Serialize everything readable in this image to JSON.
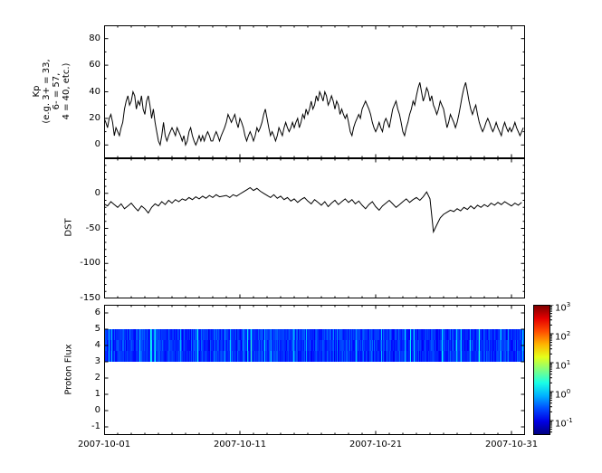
{
  "figure": {
    "background": "#ffffff",
    "line_color": "#000000",
    "x_axis": {
      "range_days": [
        0,
        31
      ],
      "major_tick_days": [
        0,
        10,
        20,
        30
      ],
      "tick_labels": [
        "2007-10-01",
        "2007-10-11",
        "2007-10-21",
        "2007-10-31"
      ],
      "minor_tick_step_days": 1
    }
  },
  "chart_data": [
    {
      "id": "kp",
      "type": "line",
      "ylabel_lines": [
        "Kp",
        "(e.g. 3+ = 33,",
        "6- = 57,",
        "4 = 40, etc.)"
      ],
      "ylim": [
        -10,
        90
      ],
      "yticks": [
        0,
        20,
        40,
        60,
        80
      ],
      "yminor_step": 10,
      "x_start_day": 0,
      "x_step_days": 0.125,
      "values": [
        20,
        17,
        13,
        20,
        23,
        17,
        7,
        13,
        10,
        7,
        13,
        17,
        27,
        33,
        37,
        30,
        33,
        40,
        37,
        27,
        33,
        30,
        37,
        27,
        23,
        33,
        37,
        30,
        20,
        27,
        17,
        10,
        3,
        0,
        7,
        17,
        7,
        3,
        7,
        10,
        13,
        10,
        7,
        13,
        10,
        7,
        3,
        7,
        0,
        3,
        10,
        13,
        7,
        3,
        0,
        3,
        7,
        3,
        7,
        3,
        7,
        10,
        7,
        3,
        3,
        7,
        10,
        7,
        3,
        7,
        10,
        13,
        17,
        23,
        20,
        17,
        20,
        23,
        17,
        13,
        20,
        17,
        13,
        7,
        3,
        7,
        10,
        7,
        3,
        7,
        13,
        10,
        13,
        17,
        23,
        27,
        20,
        13,
        7,
        10,
        7,
        3,
        7,
        13,
        10,
        7,
        13,
        17,
        13,
        10,
        13,
        17,
        13,
        17,
        20,
        13,
        17,
        23,
        20,
        27,
        23,
        27,
        33,
        27,
        30,
        37,
        33,
        40,
        37,
        33,
        40,
        37,
        30,
        33,
        37,
        33,
        27,
        33,
        30,
        23,
        27,
        23,
        20,
        23,
        17,
        10,
        7,
        13,
        17,
        20,
        23,
        20,
        27,
        30,
        33,
        30,
        27,
        23,
        17,
        13,
        10,
        13,
        17,
        13,
        10,
        17,
        20,
        17,
        13,
        20,
        27,
        30,
        33,
        27,
        23,
        17,
        10,
        7,
        13,
        17,
        23,
        27,
        33,
        30,
        37,
        43,
        47,
        40,
        33,
        37,
        43,
        40,
        33,
        37,
        30,
        27,
        23,
        27,
        33,
        30,
        27,
        20,
        13,
        17,
        23,
        20,
        17,
        13,
        17,
        23,
        30,
        37,
        43,
        47,
        40,
        33,
        27,
        23,
        27,
        30,
        23,
        17,
        13,
        10,
        13,
        17,
        20,
        17,
        13,
        10,
        13,
        17,
        13,
        10,
        7,
        13,
        17,
        13,
        10,
        13,
        10,
        13,
        17,
        13,
        10,
        7,
        10,
        13
      ]
    },
    {
      "id": "dst",
      "type": "line",
      "ylabel": "DST",
      "ylim": [
        -150,
        50
      ],
      "yticks": [
        0,
        -50,
        -100,
        -150
      ],
      "yminor_step": 10,
      "x_start_day": 0,
      "x_step_days": 0.25,
      "values": [
        -15,
        -18,
        -12,
        -16,
        -20,
        -15,
        -22,
        -18,
        -14,
        -20,
        -25,
        -18,
        -22,
        -28,
        -20,
        -15,
        -18,
        -12,
        -16,
        -10,
        -14,
        -9,
        -12,
        -8,
        -10,
        -6,
        -9,
        -5,
        -8,
        -4,
        -7,
        -3,
        -6,
        -2,
        -5,
        -4,
        -3,
        -6,
        -2,
        -4,
        -1,
        2,
        5,
        8,
        4,
        7,
        3,
        0,
        -3,
        -6,
        -2,
        -7,
        -4,
        -9,
        -6,
        -11,
        -8,
        -13,
        -9,
        -6,
        -11,
        -15,
        -9,
        -13,
        -17,
        -12,
        -19,
        -14,
        -10,
        -16,
        -12,
        -8,
        -13,
        -9,
        -15,
        -11,
        -17,
        -22,
        -16,
        -12,
        -19,
        -24,
        -18,
        -14,
        -10,
        -15,
        -20,
        -16,
        -12,
        -8,
        -13,
        -9,
        -6,
        -10,
        -5,
        2,
        -8,
        -55,
        -45,
        -35,
        -30,
        -27,
        -24,
        -26,
        -22,
        -25,
        -20,
        -23,
        -18,
        -22,
        -17,
        -20,
        -16,
        -19,
        -14,
        -17,
        -13,
        -16,
        -12,
        -15,
        -18,
        -14,
        -17,
        -13
      ]
    },
    {
      "id": "proton_flux",
      "type": "heatmap",
      "ylabel": "Proton Flux",
      "ylim": [
        -1.5,
        6.5
      ],
      "yticks": [
        -1,
        0,
        1,
        2,
        3,
        4,
        5,
        6
      ],
      "time_extent_days": [
        0,
        31
      ],
      "band_y": [
        3,
        5
      ],
      "flux_log10_typical_range": [
        -1,
        0.4
      ],
      "colormap": "jet",
      "colorbar": {
        "scale_log10_min": -1.5,
        "scale_log10_max": 3,
        "tick_exponents": [
          3,
          2,
          1,
          0,
          -1
        ],
        "gradient_top_to_bottom": [
          "#800000",
          "#e50000",
          "#ff4d00",
          "#ffb300",
          "#e5ff1a",
          "#80ff80",
          "#1affe5",
          "#00b3ff",
          "#004dff",
          "#0000e5",
          "#000080"
        ]
      }
    }
  ]
}
